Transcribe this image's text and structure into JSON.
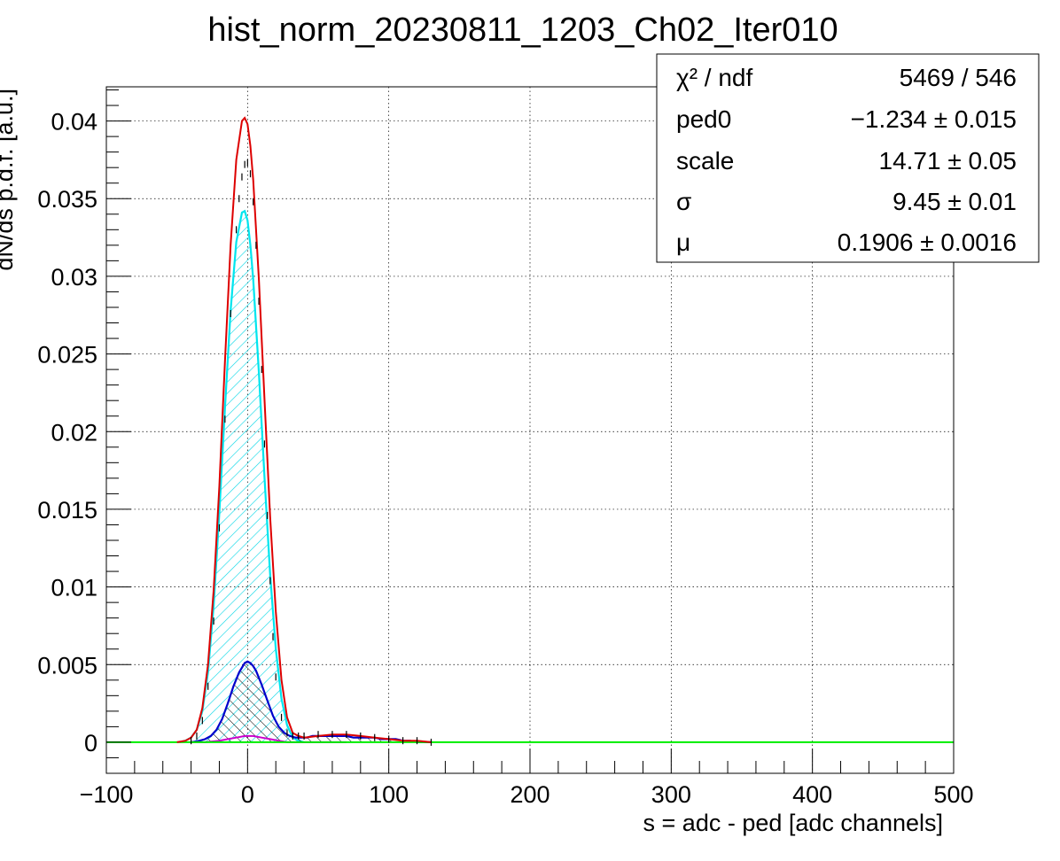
{
  "chart_data": {
    "type": "line",
    "title": "hist_norm_20230811_1203_Ch02_Iter010",
    "xlabel": "s = adc - ped [adc channels]",
    "ylabel": "dN/ds p.d.f. [a.u.]",
    "xlim": [
      -100,
      500
    ],
    "ylim": [
      -0.002,
      0.0422
    ],
    "grid": true,
    "x_ticks": [
      -100,
      0,
      100,
      200,
      300,
      400,
      500
    ],
    "x_tick_labels": [
      "−100",
      "0",
      "100",
      "200",
      "300",
      "400",
      "500"
    ],
    "y_ticks": [
      0,
      0.005,
      0.01,
      0.015,
      0.02,
      0.025,
      0.03,
      0.035,
      0.04
    ],
    "y_tick_labels": [
      "0",
      "0.005",
      "0.01",
      "0.015",
      "0.02",
      "0.025",
      "0.03",
      "0.035",
      "0.04"
    ],
    "stats": [
      {
        "label": "χ² / ndf",
        "value": "5469 / 546"
      },
      {
        "label": "ped0",
        "value": "−1.234 ± 0.015"
      },
      {
        "label": "scale",
        "value": "14.71 ± 0.05"
      },
      {
        "label": "σ",
        "value": "9.45 ± 0.01"
      },
      {
        "label": "μ",
        "value": "0.1906 ± 0.0016"
      }
    ],
    "series": [
      {
        "color": "#000000",
        "style": "points",
        "x": [
          -40,
          -36,
          -32,
          -28,
          -24,
          -20,
          -16,
          -12,
          -8,
          -6,
          -4,
          -2,
          0,
          2,
          4,
          6,
          8,
          10,
          12,
          14,
          16,
          18,
          20,
          24,
          28,
          32,
          36,
          40,
          50,
          60,
          70,
          80,
          90,
          100,
          110,
          120,
          130
        ],
        "y": [
          0.0001,
          0.0004,
          0.0014,
          0.0036,
          0.0078,
          0.0138,
          0.0208,
          0.0276,
          0.033,
          0.035,
          0.0364,
          0.0372,
          0.0373,
          0.0366,
          0.0348,
          0.032,
          0.0284,
          0.024,
          0.0192,
          0.0146,
          0.0104,
          0.0068,
          0.0042,
          0.0016,
          0.0006,
          0.0004,
          0.0004,
          0.0004,
          0.0005,
          0.0005,
          0.0005,
          0.0004,
          0.0003,
          0.0002,
          0.0001,
          0.0001,
          0.0
        ]
      },
      {
        "color": "#dd0000",
        "style": "line",
        "x": [
          -50,
          -44,
          -40,
          -36,
          -32,
          -28,
          -24,
          -20,
          -16,
          -12,
          -8,
          -4,
          -2,
          0,
          2,
          4,
          8,
          12,
          16,
          20,
          24,
          28,
          32,
          36,
          40,
          50,
          60,
          70,
          80,
          90,
          100,
          110,
          120,
          130
        ],
        "y": [
          0.0,
          0.0001,
          0.0003,
          0.0008,
          0.0022,
          0.005,
          0.0098,
          0.0165,
          0.0245,
          0.032,
          0.0375,
          0.04,
          0.0402,
          0.0398,
          0.0384,
          0.0362,
          0.0298,
          0.022,
          0.0145,
          0.0084,
          0.004,
          0.0016,
          0.0006,
          0.0004,
          0.0003,
          0.0004,
          0.0005,
          0.0005,
          0.0004,
          0.0003,
          0.0002,
          0.0001,
          0.0001,
          0.0
        ]
      },
      {
        "color": "#00e5ee",
        "style": "hatched-area",
        "x": [
          -48,
          -44,
          -40,
          -36,
          -32,
          -28,
          -24,
          -20,
          -16,
          -12,
          -8,
          -4,
          -2,
          0,
          2,
          4,
          8,
          12,
          16,
          20,
          24,
          28,
          32,
          36,
          40
        ],
        "y": [
          0.0,
          0.0001,
          0.0003,
          0.0008,
          0.002,
          0.0045,
          0.0088,
          0.0148,
          0.0215,
          0.0278,
          0.0322,
          0.0341,
          0.0342,
          0.0336,
          0.032,
          0.0298,
          0.0238,
          0.017,
          0.0108,
          0.006,
          0.0028,
          0.0011,
          0.0003,
          0.0001,
          0.0
        ]
      },
      {
        "color": "#0000cc",
        "style": "hatched-area",
        "x": [
          -40,
          -34,
          -30,
          -26,
          -22,
          -18,
          -14,
          -10,
          -6,
          -2,
          0,
          2,
          4,
          6,
          10,
          14,
          18,
          22,
          26,
          30,
          34,
          38,
          42,
          46,
          50,
          55,
          60,
          65,
          70,
          75,
          80,
          85,
          90,
          95,
          100,
          105,
          110,
          115,
          120,
          125,
          130
        ],
        "y": [
          0.0,
          0.0001,
          0.0002,
          0.0004,
          0.0008,
          0.0015,
          0.0025,
          0.0036,
          0.0045,
          0.0051,
          0.0052,
          0.0051,
          0.0049,
          0.0046,
          0.0037,
          0.0027,
          0.0017,
          0.001,
          0.0006,
          0.0004,
          0.0003,
          0.0003,
          0.0003,
          0.0004,
          0.0004,
          0.0004,
          0.0004,
          0.0004,
          0.0004,
          0.0003,
          0.0003,
          0.0003,
          0.0003,
          0.0002,
          0.0002,
          0.0002,
          0.0001,
          0.0001,
          0.0,
          0.0,
          0.0
        ]
      },
      {
        "color": "#cc00cc",
        "style": "line",
        "x": [
          -40,
          -30,
          -20,
          -14,
          -8,
          -2,
          0,
          4,
          10,
          16,
          22,
          28,
          34,
          40,
          50,
          60,
          70
        ],
        "y": [
          0.0,
          0.0,
          0.0001,
          0.0002,
          0.0003,
          0.0004,
          0.0004,
          0.0004,
          0.0003,
          0.0002,
          0.0001,
          0.0,
          0.0,
          0.0,
          0.0,
          0.0,
          0.0
        ]
      },
      {
        "color": "#00ee00",
        "style": "line",
        "x": [
          -100,
          500
        ],
        "y": [
          0,
          0
        ]
      }
    ]
  }
}
